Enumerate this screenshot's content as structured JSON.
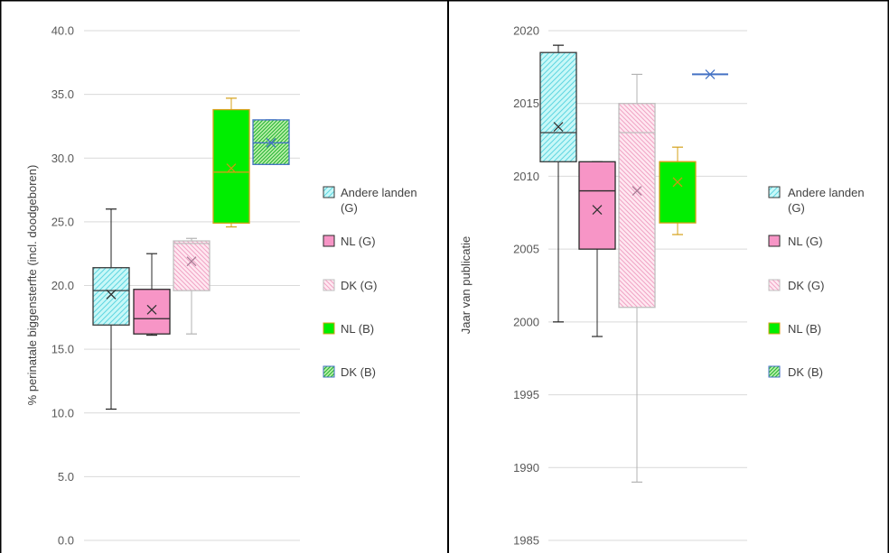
{
  "chart_data": [
    {
      "type": "box",
      "ylabel": "% perinatale biggensterfte (incl. doodgeboren)",
      "ylim": [
        0,
        40
      ],
      "yticks": [
        "0.0",
        "5.0",
        "10.0",
        "15.0",
        "20.0",
        "25.0",
        "30.0",
        "35.0",
        "40.0"
      ],
      "ytick_values": [
        0,
        5,
        10,
        15,
        20,
        25,
        30,
        35,
        40
      ],
      "grid": true,
      "legend_position": "right",
      "series": [
        {
          "name": "Andere landen (G)",
          "name_lines": [
            "Andere landen",
            "(G)"
          ],
          "whisker_low": 10.3,
          "q1": 16.9,
          "median": 19.6,
          "q3": 21.4,
          "whisker_high": 26.0,
          "mean": 19.3
        },
        {
          "name": "NL (G)",
          "name_lines": [
            "NL (G)"
          ],
          "whisker_low": 16.1,
          "q1": 16.2,
          "median": 17.4,
          "q3": 19.7,
          "whisker_high": 22.5,
          "mean": 18.1
        },
        {
          "name": "DK (G)",
          "name_lines": [
            "DK (G)"
          ],
          "whisker_low": 16.2,
          "q1": 19.6,
          "median": 23.3,
          "q3": 23.5,
          "whisker_high": 23.7,
          "mean": 21.9
        },
        {
          "name": "NL (B)",
          "name_lines": [
            "NL (B)"
          ],
          "whisker_low": 24.6,
          "q1": 24.9,
          "median": 28.9,
          "q3": 33.8,
          "whisker_high": 34.7,
          "mean": 29.2
        },
        {
          "name": "DK (B)",
          "name_lines": [
            "DK (B)"
          ],
          "whisker_low": 29.5,
          "q1": 29.5,
          "median": 31.2,
          "q3": 33.0,
          "whisker_high": 33.0,
          "mean": 31.2
        }
      ]
    },
    {
      "type": "box",
      "ylabel": "Jaar van publicatie",
      "ylim": [
        1985,
        2020
      ],
      "yticks": [
        "1985",
        "1990",
        "1995",
        "2000",
        "2005",
        "2010",
        "2015",
        "2020"
      ],
      "ytick_values": [
        1985,
        1990,
        1995,
        2000,
        2005,
        2010,
        2015,
        2020
      ],
      "grid": true,
      "legend_position": "right",
      "series": [
        {
          "name": "Andere landen (G)",
          "name_lines": [
            "Andere landen",
            "(G)"
          ],
          "whisker_low": 2000,
          "q1": 2011,
          "median": 2013,
          "q3": 2018.5,
          "whisker_high": 2019,
          "mean": 2013.4
        },
        {
          "name": "NL (G)",
          "name_lines": [
            "NL (G)"
          ],
          "whisker_low": 1999,
          "q1": 2005,
          "median": 2009,
          "q3": 2011,
          "whisker_high": 2011,
          "mean": 2007.7
        },
        {
          "name": "DK (G)",
          "name_lines": [
            "DK (G)"
          ],
          "whisker_low": 1989,
          "q1": 2001,
          "median": 2013,
          "q3": 2015,
          "whisker_high": 2017,
          "mean": 2009.0
        },
        {
          "name": "NL (B)",
          "name_lines": [
            "NL (B)"
          ],
          "whisker_low": 2006,
          "q1": 2006.8,
          "median": 2011,
          "q3": 2011,
          "whisker_high": 2012,
          "mean": 2009.6
        },
        {
          "name": "DK (B)",
          "name_lines": [
            "DK (B)"
          ],
          "whisker_low": 2017,
          "q1": 2017,
          "median": 2017,
          "q3": 2017,
          "whisker_high": 2017,
          "mean": 2017
        }
      ]
    }
  ],
  "styles": [
    {
      "fill": "#c8f8f8",
      "hatch": "#5fd6e0",
      "pattern": "light-diag-up",
      "stroke": "#3a3a3a",
      "whisker": "#1f1f1f",
      "marker": "#333333"
    },
    {
      "fill": "#f795c6",
      "hatch": null,
      "pattern": "solid",
      "stroke": "#2a2a2a",
      "whisker": "#2a2a2a",
      "marker": "#333333"
    },
    {
      "fill": "#ffe8f1",
      "hatch": "#f0a3c4",
      "pattern": "light-diag-down",
      "stroke": "#bfbfbf",
      "whisker": "#b3b3b3",
      "marker": "#a97b95"
    },
    {
      "fill": "#00ee00",
      "hatch": null,
      "pattern": "solid",
      "stroke": "#d4a017",
      "whisker": "#d4a017",
      "marker": "#c79a10"
    },
    {
      "fill": "#c3f2b0",
      "hatch": "#2db83a",
      "pattern": "dark-diag-up",
      "stroke": "#4472c4",
      "whisker": "#4472c4",
      "marker": "#4472c4"
    }
  ],
  "colors": {
    "grid": "#d9d9d9",
    "axis_text": "#595959",
    "frame": "#000000"
  }
}
